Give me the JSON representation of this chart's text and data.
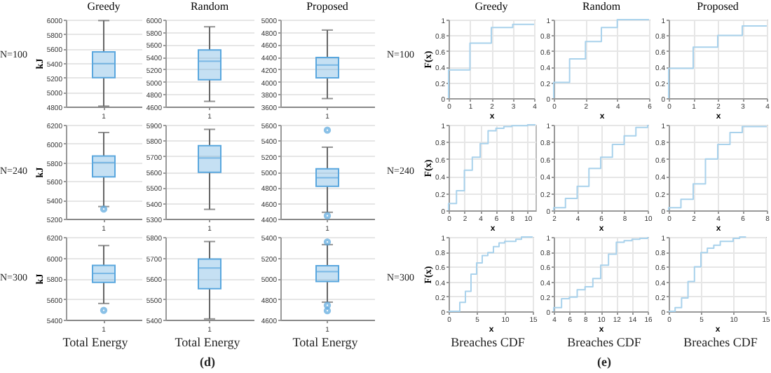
{
  "chart_data": [
    {
      "type": "box",
      "title": "Greedy",
      "ylabel": "kJ",
      "categories": [
        "1"
      ],
      "ylim": [
        4800,
        6000
      ],
      "yticks": [
        4800,
        5000,
        5200,
        5400,
        5600,
        5800,
        6000
      ],
      "grid": "y",
      "annotations": [
        "N=100"
      ],
      "series": [
        {
          "color": "#5aa7de",
          "boxes": [
            {
              "low": 4806,
              "q1": 5198,
              "median": 5393,
              "q3": 5556,
              "high": 5987
            }
          ]
        }
      ]
    },
    {
      "type": "box",
      "title": "Random",
      "categories": [
        "1"
      ],
      "ylim": [
        4600,
        6000
      ],
      "yticks": [
        4600,
        4800,
        5000,
        5200,
        5400,
        5600,
        5800,
        6000
      ],
      "grid": "y",
      "series": [
        {
          "color": "#5aa7de",
          "boxes": [
            {
              "low": 4684,
              "q1": 5033,
              "median": 5330,
              "q3": 5512,
              "high": 5885
            }
          ]
        }
      ]
    },
    {
      "type": "box",
      "title": "Proposed",
      "categories": [
        "1"
      ],
      "ylim": [
        3600,
        5000
      ],
      "yticks": [
        3600,
        3800,
        4000,
        4200,
        4400,
        4600,
        4800,
        5000
      ],
      "grid": "y",
      "series": [
        {
          "color": "#5aa7de",
          "boxes": [
            {
              "low": 3729,
              "q1": 4064,
              "median": 4269,
              "q3": 4390,
              "high": 4832
            }
          ]
        }
      ]
    },
    {
      "type": "box",
      "ylabel": "kJ",
      "categories": [
        "1"
      ],
      "ylim": [
        5200,
        6200
      ],
      "yticks": [
        5200,
        5400,
        5600,
        5800,
        6000,
        6200
      ],
      "grid": "y",
      "annotations": [
        "N=240"
      ],
      "series": [
        {
          "color": "#5aa7de",
          "boxes": [
            {
              "low": 5330,
              "q1": 5646,
              "median": 5798,
              "q3": 5868,
              "high": 6118,
              "outliers": [
                5303
              ]
            }
          ]
        }
      ]
    },
    {
      "type": "box",
      "categories": [
        "1"
      ],
      "ylim": [
        5300,
        5900
      ],
      "yticks": [
        5300,
        5400,
        5500,
        5600,
        5700,
        5800,
        5900
      ],
      "grid": "y",
      "series": [
        {
          "color": "#5aa7de",
          "boxes": [
            {
              "low": 5360,
              "q1": 5597,
              "median": 5688,
              "q3": 5767,
              "high": 5871
            }
          ]
        }
      ]
    },
    {
      "type": "box",
      "categories": [
        "1"
      ],
      "ylim": [
        4400,
        5600
      ],
      "yticks": [
        4400,
        4600,
        4800,
        5000,
        5200,
        5400,
        5600
      ],
      "grid": "y",
      "series": [
        {
          "color": "#5aa7de",
          "boxes": [
            {
              "low": 4483,
              "q1": 4815,
              "median": 4924,
              "q3": 5039,
              "high": 5314,
              "outliers": [
                5531,
                4438
              ]
            }
          ]
        }
      ]
    },
    {
      "type": "box",
      "ylabel": "kJ",
      "categories": [
        "1"
      ],
      "ylim": [
        5400,
        6200
      ],
      "yticks": [
        5400,
        5600,
        5800,
        6000,
        6200
      ],
      "grid": "y",
      "annotations": [
        "N=300",
        "Total Energy"
      ],
      "series": [
        {
          "color": "#5aa7de",
          "boxes": [
            {
              "low": 5557,
              "q1": 5761,
              "median": 5848,
              "q3": 5926,
              "high": 6117,
              "outliers": [
                5491
              ]
            }
          ]
        }
      ]
    },
    {
      "type": "box",
      "categories": [
        "1"
      ],
      "ylim": [
        5400,
        5800
      ],
      "yticks": [
        5400,
        5500,
        5600,
        5700,
        5800
      ],
      "grid": "y",
      "annotations": [
        "Total Energy",
        "(d)"
      ],
      "series": [
        {
          "color": "#5aa7de",
          "boxes": [
            {
              "low": 5404,
              "q1": 5550,
              "median": 5650,
              "q3": 5693,
              "high": 5778
            }
          ]
        }
      ]
    },
    {
      "type": "box",
      "categories": [
        "1"
      ],
      "ylim": [
        4600,
        5400
      ],
      "yticks": [
        4600,
        4800,
        5000,
        5200,
        5400
      ],
      "grid": "y",
      "annotations": [
        "Total Energy"
      ],
      "series": [
        {
          "color": "#5aa7de",
          "boxes": [
            {
              "low": 4770,
              "q1": 4970,
              "median": 5065,
              "q3": 5122,
              "high": 5326,
              "outliers": [
                5352,
                4739,
                4687
              ]
            }
          ]
        }
      ]
    },
    {
      "type": "step",
      "title": "Greedy",
      "xlabel": "x",
      "ylabel": "F(x)",
      "xlim": [
        0,
        4
      ],
      "xticks": [
        0,
        1,
        2,
        3,
        4
      ],
      "ylim": [
        0,
        1
      ],
      "yticks": [
        0,
        0.2,
        0.4,
        0.6,
        0.8,
        1
      ],
      "grid": true,
      "annotations": [
        "N=100"
      ],
      "series": [
        {
          "color": "#a9d2ec",
          "x": [
            0,
            0,
            1,
            2,
            3,
            4
          ],
          "values": [
            0,
            0.36,
            0.7,
            0.9,
            0.94,
            0.94
          ]
        }
      ]
    },
    {
      "type": "step",
      "title": "Random",
      "xlabel": "x",
      "xlim": [
        0,
        6
      ],
      "xticks": [
        0,
        2,
        4,
        6
      ],
      "ylim": [
        0,
        1
      ],
      "yticks": [
        0,
        0.2,
        0.4,
        0.6,
        0.8,
        1
      ],
      "grid": true,
      "series": [
        {
          "color": "#a9d2ec",
          "x": [
            0,
            0,
            1,
            2,
            3,
            4,
            6
          ],
          "values": [
            0,
            0.2,
            0.5,
            0.72,
            0.9,
            1,
            1
          ]
        }
      ]
    },
    {
      "type": "step",
      "title": "Proposed",
      "xlabel": "x",
      "xlim": [
        0,
        4
      ],
      "xticks": [
        0,
        1,
        2,
        3,
        4
      ],
      "ylim": [
        0,
        1
      ],
      "yticks": [
        0,
        0.2,
        0.4,
        0.6,
        0.8,
        1
      ],
      "grid": true,
      "series": [
        {
          "color": "#a9d2ec",
          "x": [
            0,
            0,
            1,
            2,
            3,
            4
          ],
          "values": [
            0,
            0.38,
            0.65,
            0.8,
            0.92,
            0.92
          ]
        }
      ]
    },
    {
      "type": "step",
      "xlabel": "x",
      "ylabel": "F(x)",
      "xlim": [
        0,
        11
      ],
      "xticks": [
        0,
        2,
        4,
        6,
        8,
        10
      ],
      "ylim": [
        0,
        1
      ],
      "yticks": [
        0,
        0.2,
        0.4,
        0.6,
        0.8,
        1
      ],
      "grid": true,
      "annotations": [
        "N=240"
      ],
      "series": [
        {
          "color": "#a9d2ec",
          "x": [
            0,
            0,
            1,
            2,
            3,
            4,
            5,
            6,
            7,
            8,
            10,
            11
          ],
          "values": [
            0,
            0.08,
            0.23,
            0.47,
            0.62,
            0.78,
            0.93,
            0.96,
            0.98,
            0.99,
            1,
            1
          ]
        }
      ]
    },
    {
      "type": "step",
      "xlabel": "x",
      "xlim": [
        2,
        10
      ],
      "xticks": [
        2,
        4,
        6,
        8,
        10
      ],
      "ylim": [
        0,
        1
      ],
      "yticks": [
        0,
        0.2,
        0.4,
        0.6,
        0.8,
        1
      ],
      "grid": true,
      "series": [
        {
          "color": "#a9d2ec",
          "x": [
            2,
            2,
            3,
            4,
            5,
            6,
            7,
            8,
            9,
            10
          ],
          "values": [
            0,
            0.03,
            0.14,
            0.28,
            0.49,
            0.62,
            0.77,
            0.87,
            0.97,
            1
          ]
        }
      ]
    },
    {
      "type": "step",
      "xlabel": "x",
      "xlim": [
        0,
        8
      ],
      "xticks": [
        0,
        2,
        4,
        6,
        8
      ],
      "ylim": [
        0,
        1
      ],
      "yticks": [
        0,
        0.2,
        0.4,
        0.6,
        0.8,
        1
      ],
      "grid": true,
      "series": [
        {
          "color": "#a9d2ec",
          "x": [
            0,
            0,
            1,
            2,
            3,
            4,
            5,
            6,
            8
          ],
          "values": [
            0,
            0.03,
            0.13,
            0.31,
            0.6,
            0.77,
            0.91,
            0.98,
            0.98
          ]
        }
      ]
    },
    {
      "type": "step",
      "xlabel": "x",
      "ylabel": "F(x)",
      "xlim": [
        0,
        15
      ],
      "xticks": [
        0,
        5,
        10,
        15
      ],
      "ylim": [
        0,
        1
      ],
      "yticks": [
        0,
        0.2,
        0.4,
        0.6,
        0.8,
        1
      ],
      "grid": true,
      "annotations": [
        "N=300",
        "Breaches CDF"
      ],
      "series": [
        {
          "color": "#a9d2ec",
          "x": [
            0,
            2,
            3,
            4,
            5,
            6,
            7,
            8,
            9,
            10,
            12,
            13,
            15
          ],
          "values": [
            0,
            0.12,
            0.27,
            0.5,
            0.65,
            0.75,
            0.79,
            0.87,
            0.92,
            0.94,
            0.97,
            1,
            1
          ]
        }
      ]
    },
    {
      "type": "step",
      "xlabel": "x",
      "xlim": [
        4,
        16
      ],
      "xticks": [
        4,
        6,
        8,
        10,
        12,
        14,
        16
      ],
      "ylim": [
        0,
        1
      ],
      "yticks": [
        0,
        0.2,
        0.4,
        0.6,
        0.8,
        1
      ],
      "grid": true,
      "annotations": [
        "Breaches CDF",
        "(e)"
      ],
      "series": [
        {
          "color": "#a9d2ec",
          "x": [
            4,
            4,
            5,
            6,
            7,
            8,
            9,
            10,
            11,
            12,
            13,
            14,
            15,
            16
          ],
          "values": [
            0,
            0.05,
            0.17,
            0.19,
            0.29,
            0.33,
            0.44,
            0.62,
            0.77,
            0.93,
            0.95,
            0.97,
            0.98,
            1
          ]
        }
      ]
    },
    {
      "type": "step",
      "xlabel": "x",
      "xlim": [
        0,
        15
      ],
      "xticks": [
        0,
        5,
        10,
        15
      ],
      "ylim": [
        0,
        1
      ],
      "yticks": [
        0,
        0.2,
        0.4,
        0.6,
        0.8,
        1
      ],
      "grid": true,
      "annotations": [
        "Breaches CDF"
      ],
      "series": [
        {
          "color": "#a9d2ec",
          "x": [
            0,
            1,
            2,
            3,
            4,
            5,
            6,
            7,
            8,
            10,
            11,
            12
          ],
          "values": [
            0,
            0.05,
            0.18,
            0.4,
            0.6,
            0.79,
            0.85,
            0.89,
            0.94,
            0.98,
            1,
            1
          ]
        }
      ]
    }
  ]
}
